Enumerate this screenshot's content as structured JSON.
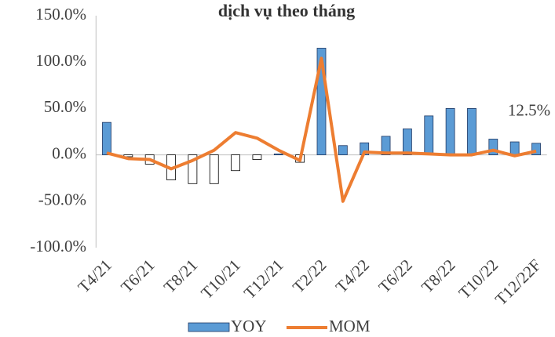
{
  "chart_data": {
    "type": "bar-line",
    "title": "dịch vụ theo tháng",
    "categories": [
      "T4/21",
      null,
      "T6/21",
      null,
      "T8/21",
      null,
      "T10/21",
      null,
      "T12/21",
      null,
      "T2/22",
      null,
      "T4/22",
      null,
      "T6/22",
      null,
      "T8/22",
      null,
      "T10/22",
      null,
      "T12/22F"
    ],
    "series": [
      {
        "name": "YOY",
        "type": "bar",
        "color": "#5b9bd5",
        "invert_negative": true,
        "values": [
          35,
          -2,
          -10,
          -27,
          -31,
          -31,
          -17,
          -5,
          1,
          -8,
          115,
          10,
          13,
          20,
          28,
          42,
          50,
          50,
          17,
          14,
          12.5
        ],
        "value_labels": [
          null,
          null,
          null,
          null,
          null,
          null,
          null,
          null,
          null,
          null,
          null,
          null,
          null,
          null,
          null,
          null,
          null,
          null,
          null,
          null,
          "12.5%"
        ]
      },
      {
        "name": "MOM",
        "type": "line",
        "color": "#ed7d31",
        "values": [
          2,
          -4,
          -5,
          -15,
          -6,
          5,
          24,
          18,
          5,
          -6,
          104,
          -50,
          3,
          2,
          2,
          1,
          0,
          0,
          5,
          -1,
          4
        ]
      }
    ],
    "ylim": [
      -100,
      150
    ],
    "yticks": [
      {
        "value": -100,
        "label": "-100.0%"
      },
      {
        "value": -50,
        "label": "-50.0%"
      },
      {
        "value": 0,
        "label": "0.0%"
      },
      {
        "value": 50,
        "label": "50.0%"
      },
      {
        "value": 100,
        "label": "100.0%"
      },
      {
        "value": 150,
        "label": "150.0%"
      }
    ],
    "grid": false,
    "legend": "bottom"
  }
}
